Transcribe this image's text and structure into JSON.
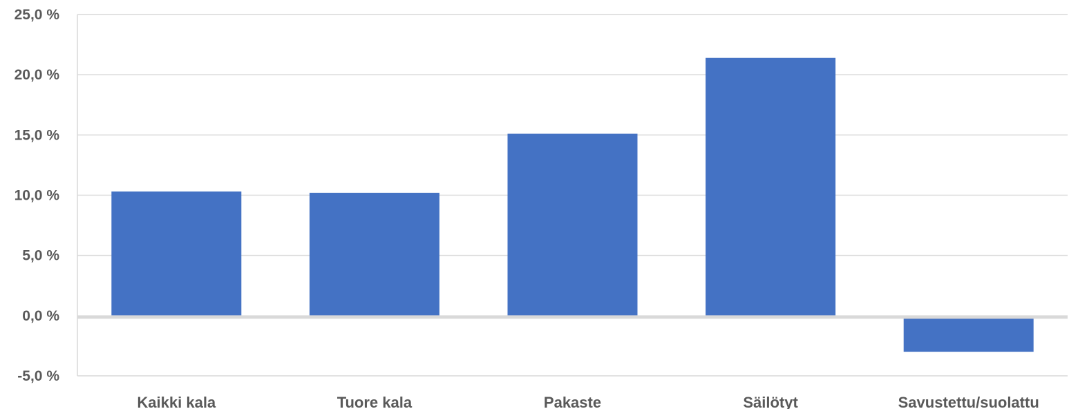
{
  "chart_data": {
    "type": "bar",
    "categories": [
      "Kaikki kala",
      "Tuore kala",
      "Pakaste",
      "Säilötyt",
      "Savustettu/suolattu"
    ],
    "values": [
      10.3,
      10.2,
      15.1,
      21.4,
      -3.0
    ],
    "ylim": [
      -5,
      25
    ],
    "yticks": [
      -5,
      0,
      5,
      10,
      15,
      20,
      25
    ],
    "ytick_labels": [
      "-5,0 %",
      "0,0 %",
      "5,0 %",
      "10,0 %",
      "15,0 %",
      "20,0 %",
      "25,0 %"
    ],
    "grid": true,
    "legend": "none",
    "title": "",
    "xlabel": "",
    "ylabel": "",
    "colors": {
      "bar": "#4472C4",
      "grid": "#D9D9D9",
      "zero_line": "#D9D9D9",
      "text": "#595959"
    }
  }
}
